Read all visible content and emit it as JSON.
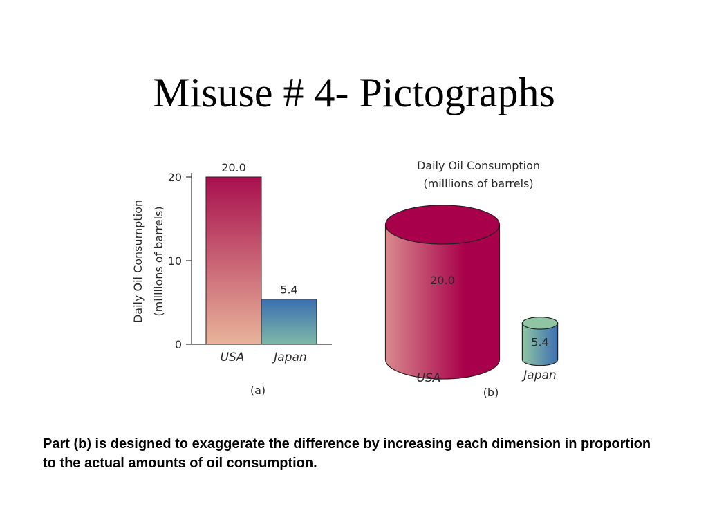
{
  "slide": {
    "title": "Misuse # 4- Pictographs",
    "caption": "Part (b) is designed to exaggerate the difference by increasing each dimension in proportion to the actual amounts of oil consumption."
  },
  "colors": {
    "usa_top": "#a8104e",
    "usa_bottom": "#e8b49a",
    "japan_top": "#3a6fb0",
    "japan_bottom": "#7fb8a8",
    "cyl_usa_dark": "#a8004a",
    "cyl_usa_light": "#d98a8e",
    "cyl_japan_dark": "#3d6fb2",
    "cyl_japan_light": "#8fc5a2",
    "axis": "#333333"
  },
  "chart_data": [
    {
      "type": "bar",
      "panel_label": "(a)",
      "categories": [
        "USA",
        "Japan"
      ],
      "values": [
        20.0,
        5.4
      ],
      "data_labels": [
        "20.0",
        "5.4"
      ],
      "ylabel": "Daily Oil Consumption",
      "ylabel_line2": "(milllions of barrels)",
      "ylim": [
        0,
        20
      ],
      "yticks": [
        0,
        10,
        20
      ],
      "grid": false
    },
    {
      "type": "pictograph",
      "panel_label": "(b)",
      "title": "Daily Oil Consumption",
      "subtitle": "(milllions of barrels)",
      "categories": [
        "USA",
        "Japan"
      ],
      "values": [
        20.0,
        5.4
      ],
      "data_labels": [
        "20.0",
        "5.4"
      ]
    }
  ]
}
